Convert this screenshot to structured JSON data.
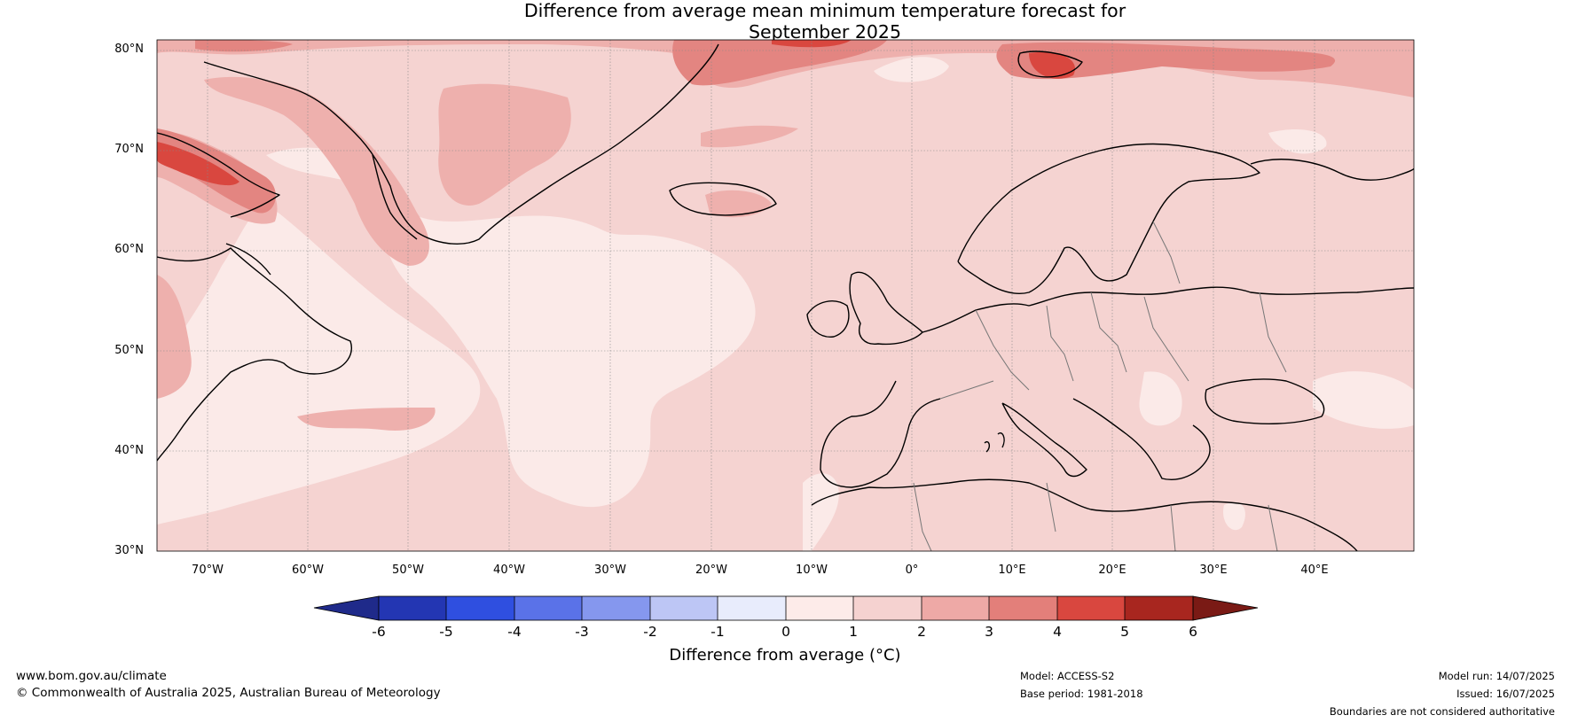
{
  "title": {
    "line1": "Difference from average mean minimum temperature forecast for",
    "line2": "September 2025"
  },
  "map": {
    "lat_labels": [
      "80°N",
      "70°N",
      "60°N",
      "50°N",
      "40°N",
      "30°N"
    ],
    "lon_labels": [
      "70°W",
      "60°W",
      "50°W",
      "40°W",
      "30°W",
      "20°W",
      "10°W",
      "0°",
      "10°E",
      "20°E",
      "30°E",
      "40°E"
    ],
    "extent": {
      "lon": [
        -75,
        50
      ],
      "lat": [
        30,
        80
      ]
    },
    "graticule_step_deg": 10
  },
  "colorbar": {
    "label": "Difference from average (°C)",
    "ticks": [
      "-6",
      "-5",
      "-4",
      "-3",
      "-2",
      "-1",
      "0",
      "1",
      "2",
      "3",
      "4",
      "5",
      "6"
    ],
    "colors": [
      "#1f2a8a",
      "#2336b3",
      "#2f4fe0",
      "#5a72e8",
      "#8597ee",
      "#bdc6f5",
      "#e8ecfc",
      "#fdebe9",
      "#f5d2d0",
      "#eea9a6",
      "#e37f7a",
      "#d9473f",
      "#a8261f",
      "#7a1a15"
    ]
  },
  "footer": {
    "website": "www.bom.gov.au/climate",
    "copyright": "© Commonwealth of Australia 2025, Australian Bureau of Meteorology",
    "model": "Model: ACCESS-S2",
    "base_period": "Base period: 1981-2018",
    "model_run": "Model run: 14/07/2025",
    "issued": "Issued: 16/07/2025",
    "disclaimer": "Boundaries are not considered authoritative"
  }
}
